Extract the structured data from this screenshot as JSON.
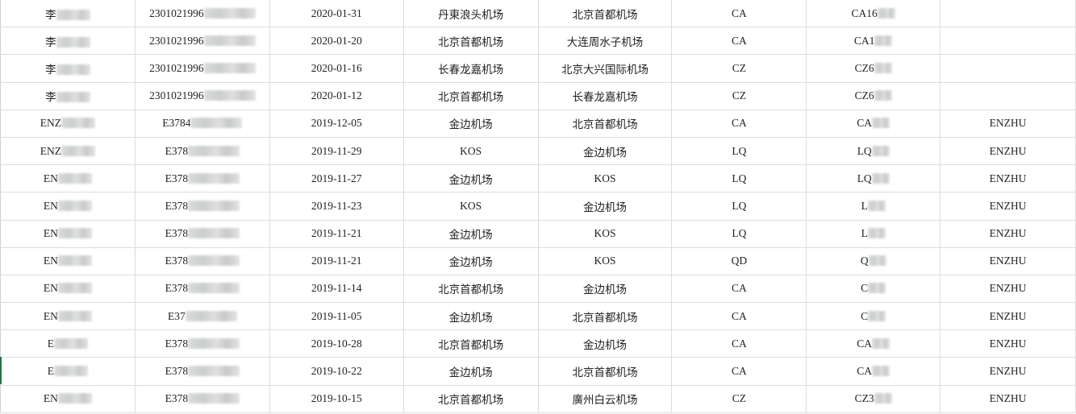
{
  "rows": [
    {
      "name": "李",
      "id": "2301021996",
      "date": "2020-01-31",
      "from": "丹東浪头机场",
      "to": "北京首都机场",
      "airline": "CA",
      "flight": "CA16",
      "extra": ""
    },
    {
      "name": "李",
      "id": "2301021996",
      "date": "2020-01-20",
      "from": "北京首都机场",
      "to": "大连周水子机场",
      "airline": "CA",
      "flight": "CA1",
      "extra": ""
    },
    {
      "name": "李",
      "id": "2301021996",
      "date": "2020-01-16",
      "from": "长春龙嘉机场",
      "to": "北京大兴国际机场",
      "airline": "CZ",
      "flight": "CZ6",
      "extra": ""
    },
    {
      "name": "李",
      "id": "2301021996",
      "date": "2020-01-12",
      "from": "北京首都机场",
      "to": "长春龙嘉机场",
      "airline": "CZ",
      "flight": "CZ6",
      "extra": ""
    },
    {
      "name": "ENZ",
      "id": "E3784",
      "date": "2019-12-05",
      "from": "金边机场",
      "to": "北京首都机场",
      "airline": "CA",
      "flight": "CA",
      "extra": "ENZHU"
    },
    {
      "name": "ENZ",
      "id": "E378",
      "date": "2019-11-29",
      "from": "KOS",
      "to": "金边机场",
      "airline": "LQ",
      "flight": "LQ",
      "extra": "ENZHU"
    },
    {
      "name": "EN",
      "id": "E378",
      "date": "2019-11-27",
      "from": "金边机场",
      "to": "KOS",
      "airline": "LQ",
      "flight": "LQ",
      "extra": "ENZHU"
    },
    {
      "name": "EN",
      "id": "E378",
      "date": "2019-11-23",
      "from": "KOS",
      "to": "金边机场",
      "airline": "LQ",
      "flight": "L",
      "extra": "ENZHU"
    },
    {
      "name": "EN",
      "id": "E378",
      "date": "2019-11-21",
      "from": "金边机场",
      "to": "KOS",
      "airline": "LQ",
      "flight": "L",
      "extra": "ENZHU"
    },
    {
      "name": "EN",
      "id": "E378",
      "date": "2019-11-21",
      "from": "金边机场",
      "to": "KOS",
      "airline": "QD",
      "flight": "Q",
      "extra": "ENZHU"
    },
    {
      "name": "EN",
      "id": "E378",
      "date": "2019-11-14",
      "from": "北京首都机场",
      "to": "金边机场",
      "airline": "CA",
      "flight": "C",
      "extra": "ENZHU"
    },
    {
      "name": "EN",
      "id": "E37",
      "date": "2019-11-05",
      "from": "金边机场",
      "to": "北京首都机场",
      "airline": "CA",
      "flight": "C",
      "extra": "ENZHU"
    },
    {
      "name": "E",
      "id": "E378",
      "date": "2019-10-28",
      "from": "北京首都机场",
      "to": "金边机场",
      "airline": "CA",
      "flight": "CA",
      "extra": "ENZHU"
    },
    {
      "name": "E",
      "id": "E378",
      "date": "2019-10-22",
      "from": "金边机场",
      "to": "北京首都机场",
      "airline": "CA",
      "flight": "CA",
      "extra": "ENZHU"
    },
    {
      "name": "EN",
      "id": "E378",
      "date": "2019-10-15",
      "from": "北京首都机场",
      "to": "廣州白云机场",
      "airline": "CZ",
      "flight": "CZ3",
      "extra": "ENZHU"
    }
  ]
}
